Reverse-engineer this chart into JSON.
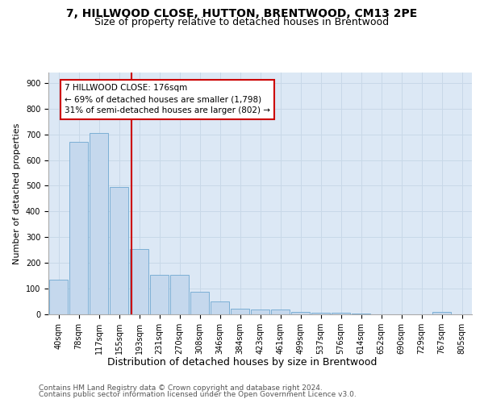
{
  "title_line1": "7, HILLWOOD CLOSE, HUTTON, BRENTWOOD, CM13 2PE",
  "title_line2": "Size of property relative to detached houses in Brentwood",
  "xlabel": "Distribution of detached houses by size in Brentwood",
  "ylabel": "Number of detached properties",
  "bar_labels": [
    "40sqm",
    "78sqm",
    "117sqm",
    "155sqm",
    "193sqm",
    "231sqm",
    "270sqm",
    "308sqm",
    "346sqm",
    "384sqm",
    "423sqm",
    "461sqm",
    "499sqm",
    "537sqm",
    "576sqm",
    "614sqm",
    "652sqm",
    "690sqm",
    "729sqm",
    "767sqm",
    "805sqm"
  ],
  "bar_heights": [
    135,
    672,
    705,
    495,
    253,
    152,
    152,
    88,
    50,
    22,
    18,
    18,
    8,
    7,
    5,
    4,
    1,
    1,
    1,
    8,
    1
  ],
  "bar_color": "#c5d8ed",
  "bar_edgecolor": "#6fa8d0",
  "red_line_x": 3.62,
  "annotation_line1": "7 HILLWOOD CLOSE: 176sqm",
  "annotation_line2": "← 69% of detached houses are smaller (1,798)",
  "annotation_line3": "31% of semi-detached houses are larger (802) →",
  "annotation_box_color": "#ffffff",
  "annotation_box_edgecolor": "#cc0000",
  "red_line_color": "#cc0000",
  "ylim": [
    0,
    940
  ],
  "yticks": [
    0,
    100,
    200,
    300,
    400,
    500,
    600,
    700,
    800,
    900
  ],
  "grid_color": "#c8d8e8",
  "background_color": "#dce8f5",
  "footer_line1": "Contains HM Land Registry data © Crown copyright and database right 2024.",
  "footer_line2": "Contains public sector information licensed under the Open Government Licence v3.0.",
  "title_fontsize": 10,
  "subtitle_fontsize": 9,
  "xlabel_fontsize": 9,
  "ylabel_fontsize": 8,
  "tick_fontsize": 7,
  "annotation_fontsize": 7.5,
  "footer_fontsize": 6.5
}
